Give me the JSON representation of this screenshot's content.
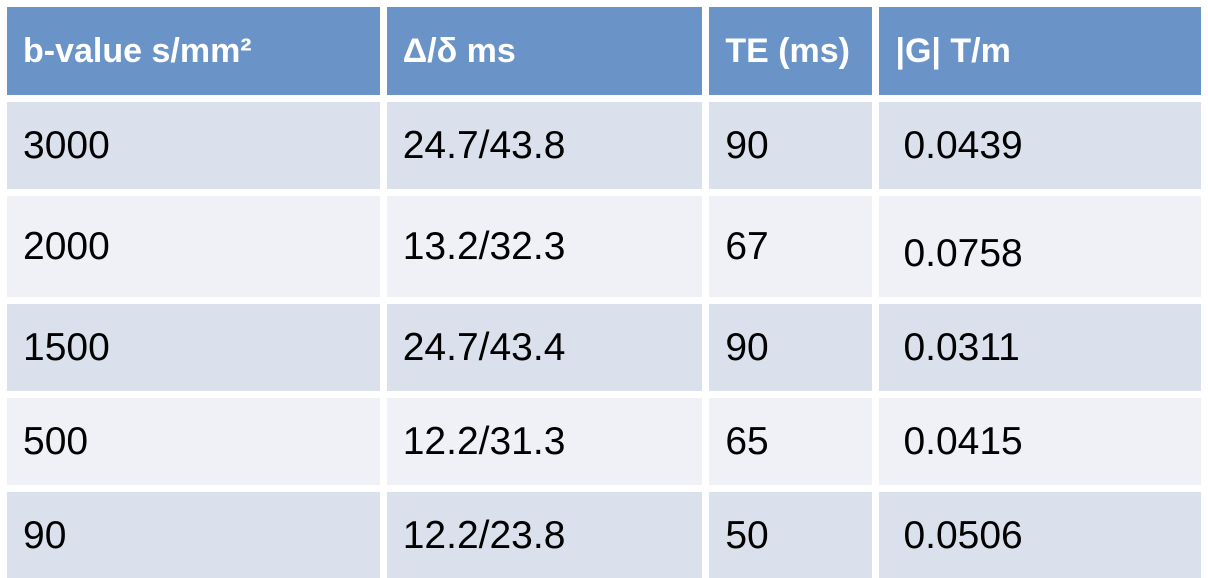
{
  "chart_data": {
    "type": "table",
    "title": "",
    "columns": [
      "b-value s/mm²",
      "Δ/δ ms",
      "TE (ms)",
      "|G| T/m"
    ],
    "rows": [
      [
        "3000",
        "24.7/43.8",
        "90",
        "0.0439"
      ],
      [
        "2000",
        "13.2/32.3",
        "67",
        "0.0758"
      ],
      [
        "1500",
        "24.7/43.4",
        "90",
        "0.0311"
      ],
      [
        "500",
        "12.2/31.3",
        "65",
        "0.0415"
      ],
      [
        "90",
        "12.2/23.8",
        "50",
        "0.0506"
      ]
    ],
    "layout_hints": {
      "header_style": "solid blue band, white bold text",
      "row_banding": "alternating light blue-gray stripes",
      "cell_dividers": "white gaps between all cells",
      "text_alignment": "left"
    }
  },
  "colors": {
    "header_bg": "#6A94C8",
    "header_text": "#FFFFFF",
    "row_odd_bg": "#DAE0EC",
    "row_even_bg": "#EFF1F7",
    "cell_text": "#000000",
    "divider": "#FFFFFF",
    "page_bg": "#FFFFFF"
  }
}
